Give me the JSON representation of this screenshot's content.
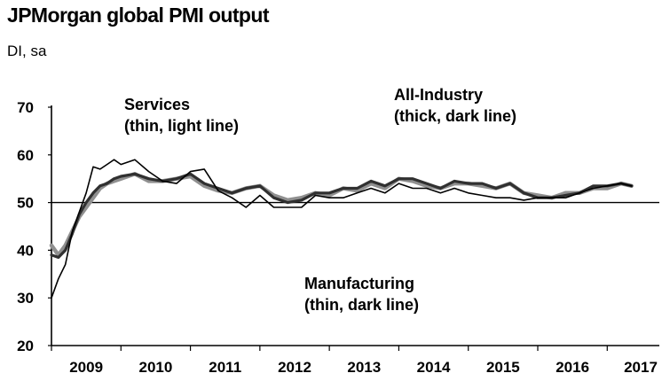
{
  "title": "JPMorgan global PMI output",
  "subtitle": "DI, sa",
  "chart_data": {
    "type": "line",
    "title": "JPMorgan global PMI output",
    "ylabel": "DI, sa",
    "xlabel": "",
    "ylim": [
      20,
      70
    ],
    "yticks": [
      20,
      30,
      40,
      50,
      60,
      70
    ],
    "xlim": [
      2009.0,
      2017.75
    ],
    "xticks": [
      "2009",
      "2010",
      "2011",
      "2012",
      "2013",
      "2014",
      "2015",
      "2016",
      "2017"
    ],
    "reference_line": 50,
    "annotations": [
      {
        "lines": [
          "Services",
          "(thin, light line)"
        ]
      },
      {
        "lines": [
          "All-Industry",
          "(thick, dark line)"
        ]
      },
      {
        "lines": [
          "Manufacturing",
          "(thin, dark line)"
        ]
      }
    ],
    "series": [
      {
        "name": "Services",
        "style": "thin, light line",
        "color": "#909090",
        "x": [
          2009.0,
          2009.1,
          2009.2,
          2009.3,
          2009.4,
          2009.5,
          2009.6,
          2009.7,
          2009.8,
          2009.9,
          2010.0,
          2010.2,
          2010.4,
          2010.6,
          2010.8,
          2011.0,
          2011.2,
          2011.4,
          2011.6,
          2011.8,
          2012.0,
          2012.2,
          2012.4,
          2012.6,
          2012.8,
          2013.0,
          2013.2,
          2013.4,
          2013.6,
          2013.8,
          2014.0,
          2014.2,
          2014.4,
          2014.6,
          2014.8,
          2015.0,
          2015.2,
          2015.4,
          2015.6,
          2015.8,
          2016.0,
          2016.2,
          2016.4,
          2016.6,
          2016.8,
          2017.0,
          2017.2,
          2017.35
        ],
        "values": [
          41,
          39,
          41,
          44,
          47,
          49,
          51,
          53,
          54,
          54.5,
          55,
          56,
          54.5,
          54.5,
          55,
          55.5,
          53.5,
          52.5,
          52,
          53,
          53.5,
          51.5,
          50.5,
          51,
          52,
          51.5,
          53,
          52.5,
          54,
          53,
          55,
          54.5,
          53.5,
          53,
          54,
          54,
          53.5,
          53,
          54,
          52,
          51.5,
          51,
          52,
          52,
          53,
          53,
          54,
          53.5
        ]
      },
      {
        "name": "All-Industry",
        "style": "thick, dark line",
        "color": "#303030",
        "x": [
          2009.0,
          2009.1,
          2009.2,
          2009.3,
          2009.4,
          2009.5,
          2009.6,
          2009.7,
          2009.8,
          2009.9,
          2010.0,
          2010.2,
          2010.4,
          2010.6,
          2010.8,
          2011.0,
          2011.2,
          2011.4,
          2011.6,
          2011.8,
          2012.0,
          2012.2,
          2012.4,
          2012.6,
          2012.8,
          2013.0,
          2013.2,
          2013.4,
          2013.6,
          2013.8,
          2014.0,
          2014.2,
          2014.4,
          2014.6,
          2014.8,
          2015.0,
          2015.2,
          2015.4,
          2015.6,
          2015.8,
          2016.0,
          2016.2,
          2016.4,
          2016.6,
          2016.8,
          2017.0,
          2017.2,
          2017.35
        ],
        "values": [
          39,
          38.5,
          40,
          43.5,
          47.5,
          50,
          52,
          53.5,
          54,
          55,
          55.5,
          56,
          55,
          54.5,
          55,
          56,
          54,
          53,
          52,
          53,
          53.5,
          51,
          50,
          50.5,
          52,
          52,
          53,
          53,
          54.5,
          53.5,
          55,
          55,
          54,
          53,
          54.5,
          54,
          54,
          53,
          54,
          52,
          51,
          51,
          51.5,
          52,
          53.5,
          53.5,
          54,
          53.5
        ]
      },
      {
        "name": "Manufacturing",
        "style": "thin, dark line",
        "color": "#000000",
        "x": [
          2009.0,
          2009.1,
          2009.2,
          2009.3,
          2009.4,
          2009.5,
          2009.6,
          2009.7,
          2009.8,
          2009.9,
          2010.0,
          2010.2,
          2010.4,
          2010.6,
          2010.8,
          2011.0,
          2011.2,
          2011.4,
          2011.6,
          2011.8,
          2012.0,
          2012.2,
          2012.4,
          2012.6,
          2012.8,
          2013.0,
          2013.2,
          2013.4,
          2013.6,
          2013.8,
          2014.0,
          2014.2,
          2014.4,
          2014.6,
          2014.8,
          2015.0,
          2015.2,
          2015.4,
          2015.6,
          2015.8,
          2016.0,
          2016.2,
          2016.4,
          2016.6,
          2016.8,
          2017.0,
          2017.2,
          2017.35
        ],
        "values": [
          30,
          34,
          37,
          44,
          48,
          52,
          57.5,
          57,
          58,
          59,
          58,
          59,
          56.5,
          54.5,
          54,
          56.5,
          57,
          52.5,
          51,
          49,
          51.5,
          49,
          49,
          49,
          51.5,
          51,
          51,
          52,
          53,
          52,
          54,
          53,
          53,
          52,
          53,
          52,
          51.5,
          51,
          51,
          50.5,
          51,
          51,
          51,
          52,
          53,
          53.5,
          54,
          53.5
        ]
      }
    ]
  }
}
